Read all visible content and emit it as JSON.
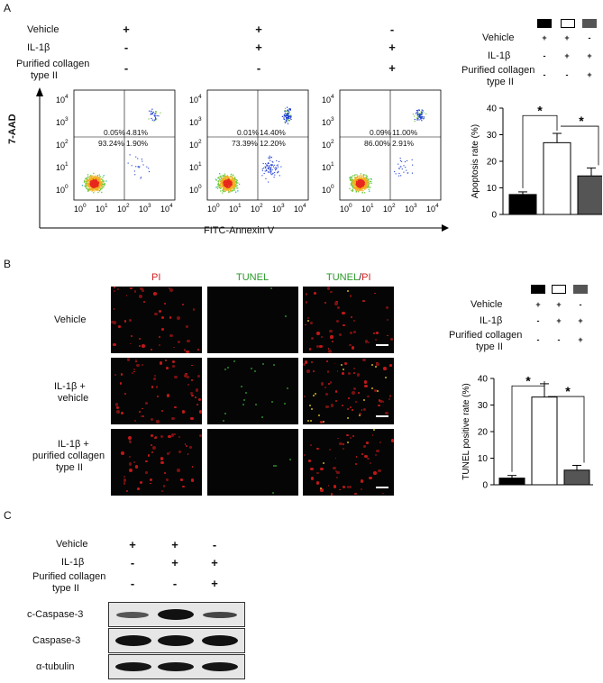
{
  "panels": {
    "a": "A",
    "b": "B",
    "c": "C"
  },
  "conditions": {
    "vehicle": "Vehicle",
    "il1b": "IL-1β",
    "collagen_line1": "Purified collagen",
    "collagen_line2": "type II",
    "signs": {
      "vehicle": [
        "+",
        "+",
        "-"
      ],
      "il1b": [
        "-",
        "+",
        "+"
      ],
      "collagen": [
        "-",
        "-",
        "+"
      ]
    }
  },
  "flow": {
    "ylabel": "7-AAD",
    "xlabel": "FITC-Annexin V",
    "y_ticks": [
      "10",
      "10",
      "10",
      "10",
      "10"
    ],
    "y_exp": [
      "4",
      "3",
      "2",
      "1",
      "0"
    ],
    "x_ticks": [
      "10",
      "10",
      "10",
      "10",
      "10"
    ],
    "x_exp": [
      "0",
      "1",
      "2",
      "3",
      "4"
    ],
    "plots": [
      {
        "ul": "0.05%",
        "ur": "4.81%",
        "ll": "93.24%",
        "lr": "1.90%"
      },
      {
        "ul": "0.01%",
        "ur": "14.40%",
        "ll": "73.39%",
        "lr": "12.20%"
      },
      {
        "ul": "0.09%",
        "ur": "11.00%",
        "ll": "86.00%",
        "lr": "2.91%"
      }
    ]
  },
  "chart_data": [
    {
      "type": "bar",
      "categories": [
        "Vehicle",
        "IL-1β",
        "IL-1β + Purified collagen type II"
      ],
      "values": [
        7.5,
        27,
        14.5
      ],
      "errors": [
        1,
        3.5,
        3
      ],
      "colors": [
        "#000000",
        "#ffffff",
        "#555555"
      ],
      "ylabel": "Apoptosis rate (%)",
      "ylim": [
        0,
        40
      ],
      "yticks": [
        "0",
        "10",
        "20",
        "30",
        "40"
      ],
      "significance": [
        "*",
        "*"
      ]
    },
    {
      "type": "bar",
      "categories": [
        "Vehicle",
        "IL-1β",
        "IL-1β + Purified collagen type II"
      ],
      "values": [
        2.5,
        33,
        5.5
      ],
      "errors": [
        1,
        5,
        1.8
      ],
      "colors": [
        "#000000",
        "#ffffff",
        "#555555"
      ],
      "ylabel": "TUNEL positive rate (%)",
      "ylim": [
        0,
        40
      ],
      "yticks": [
        "0",
        "10",
        "20",
        "30",
        "40"
      ],
      "significance": [
        "*",
        "*"
      ]
    }
  ],
  "tunel": {
    "col_pi": "PI",
    "col_tunel": "TUNEL",
    "col_merge_a": "TUNEL",
    "col_merge_sep": "/",
    "col_merge_b": "PI",
    "row1": "Vehicle",
    "row2_l1": "IL-1β +",
    "row2_l2": "vehicle",
    "row3_l1": "IL-1β +",
    "row3_l2": "purified collagen",
    "row3_l3": "type II",
    "pi_color": "#d42020",
    "tunel_color": "#2a9a2a"
  },
  "blot": {
    "rows": [
      "c-Caspase-3",
      "Caspase-3",
      "α-tubulin"
    ]
  }
}
